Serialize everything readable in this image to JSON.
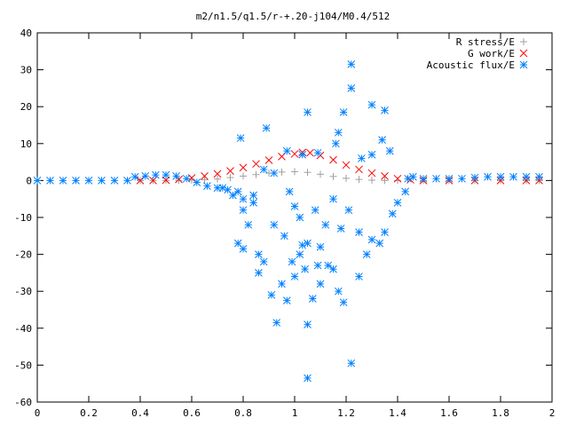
{
  "chart_data": {
    "type": "scatter",
    "title": "m2/n1.5/q1.5/r-+.20-j104/M0.4/512",
    "xlabel": "",
    "ylabel": "",
    "xlim": [
      0,
      2
    ],
    "ylim": [
      -60,
      40
    ],
    "xticks": [
      "0",
      "0.2",
      "0.4",
      "0.6",
      "0.8",
      "1",
      "1.2",
      "1.4",
      "1.6",
      "1.8",
      "2"
    ],
    "yticks": [
      "40",
      "30",
      "20",
      "10",
      "0",
      "-10",
      "-20",
      "-30",
      "-40",
      "-50",
      "-60"
    ],
    "grid": false,
    "legend_position": "top-right",
    "series": [
      {
        "name": "R stress/E",
        "marker": "plus",
        "color": "#a0a0a0",
        "points": [
          [
            0.4,
            0.0
          ],
          [
            0.45,
            0.0
          ],
          [
            0.5,
            0.0
          ],
          [
            0.55,
            0.0
          ],
          [
            0.6,
            0.1
          ],
          [
            0.65,
            0.2
          ],
          [
            0.7,
            0.4
          ],
          [
            0.75,
            0.8
          ],
          [
            0.8,
            1.2
          ],
          [
            0.85,
            1.6
          ],
          [
            0.9,
            2.0
          ],
          [
            0.95,
            2.3
          ],
          [
            1.0,
            2.4
          ],
          [
            1.05,
            2.2
          ],
          [
            1.1,
            1.7
          ],
          [
            1.15,
            1.1
          ],
          [
            1.2,
            0.6
          ],
          [
            1.25,
            0.3
          ],
          [
            1.3,
            0.1
          ],
          [
            1.35,
            0.0
          ],
          [
            1.4,
            0.0
          ],
          [
            1.5,
            0.0
          ],
          [
            1.6,
            0.0
          ],
          [
            1.7,
            0.0
          ],
          [
            1.8,
            0.0
          ],
          [
            1.9,
            0.0
          ],
          [
            1.95,
            0.0
          ]
        ]
      },
      {
        "name": "G work/E",
        "marker": "cross",
        "color": "#ff0000",
        "points": [
          [
            0.4,
            0.0
          ],
          [
            0.45,
            0.0
          ],
          [
            0.5,
            0.1
          ],
          [
            0.55,
            0.3
          ],
          [
            0.6,
            0.7
          ],
          [
            0.65,
            1.2
          ],
          [
            0.7,
            1.8
          ],
          [
            0.75,
            2.6
          ],
          [
            0.8,
            3.5
          ],
          [
            0.85,
            4.5
          ],
          [
            0.9,
            5.5
          ],
          [
            0.95,
            6.5
          ],
          [
            1.0,
            7.2
          ],
          [
            1.03,
            7.6
          ],
          [
            1.06,
            7.5
          ],
          [
            1.1,
            6.8
          ],
          [
            1.15,
            5.6
          ],
          [
            1.2,
            4.2
          ],
          [
            1.25,
            3.0
          ],
          [
            1.3,
            2.0
          ],
          [
            1.35,
            1.2
          ],
          [
            1.4,
            0.5
          ],
          [
            1.45,
            0.2
          ],
          [
            1.5,
            0.0
          ],
          [
            1.6,
            0.0
          ],
          [
            1.7,
            0.0
          ],
          [
            1.8,
            0.0
          ],
          [
            1.9,
            0.0
          ],
          [
            1.95,
            0.0
          ]
        ]
      },
      {
        "name": "Acoustic flux/E",
        "marker": "star",
        "color": "#0080ff",
        "points": [
          [
            0.0,
            0.0
          ],
          [
            0.05,
            0.0
          ],
          [
            0.1,
            0.0
          ],
          [
            0.15,
            0.0
          ],
          [
            0.2,
            0.0
          ],
          [
            0.25,
            0.0
          ],
          [
            0.3,
            0.0
          ],
          [
            0.35,
            0.0
          ],
          [
            0.38,
            1.0
          ],
          [
            0.42,
            1.2
          ],
          [
            0.46,
            1.5
          ],
          [
            0.5,
            1.5
          ],
          [
            0.54,
            1.2
          ],
          [
            0.58,
            0.5
          ],
          [
            0.62,
            -0.5
          ],
          [
            0.66,
            -1.5
          ],
          [
            0.7,
            -2.0
          ],
          [
            0.74,
            -2.5
          ],
          [
            0.78,
            -3.0
          ],
          [
            0.72,
            -2.0
          ],
          [
            0.76,
            -4.0
          ],
          [
            0.8,
            -5.0
          ],
          [
            0.84,
            -4.0
          ],
          [
            0.79,
            11.5
          ],
          [
            0.89,
            14.2
          ],
          [
            0.97,
            8.0
          ],
          [
            1.03,
            7.0
          ],
          [
            1.09,
            7.5
          ],
          [
            1.16,
            10.0
          ],
          [
            0.8,
            -8.0
          ],
          [
            0.82,
            -12.0
          ],
          [
            0.78,
            -17.0
          ],
          [
            0.8,
            -18.5
          ],
          [
            0.86,
            -20.0
          ],
          [
            0.86,
            -25.0
          ],
          [
            0.88,
            -22.0
          ],
          [
            0.91,
            -31.0
          ],
          [
            0.93,
            -38.5
          ],
          [
            0.95,
            -28.0
          ],
          [
            0.97,
            -32.5
          ],
          [
            1.0,
            -26.0
          ],
          [
            1.02,
            -20.0
          ],
          [
            1.03,
            -17.5
          ],
          [
            1.05,
            -17.0
          ],
          [
            1.04,
            -24.0
          ],
          [
            1.07,
            -32.0
          ],
          [
            1.09,
            -23.0
          ],
          [
            1.13,
            -23.0
          ],
          [
            1.15,
            -24.0
          ],
          [
            1.17,
            -30.0
          ],
          [
            1.19,
            -33.0
          ],
          [
            1.05,
            -39.0
          ],
          [
            1.05,
            -53.5
          ],
          [
            1.22,
            -49.5
          ],
          [
            1.05,
            18.5
          ],
          [
            1.17,
            13.0
          ],
          [
            1.19,
            18.5
          ],
          [
            1.22,
            25.0
          ],
          [
            1.22,
            31.5
          ],
          [
            1.3,
            20.5
          ],
          [
            1.35,
            19.0
          ],
          [
            1.34,
            11.0
          ],
          [
            1.37,
            8.0
          ],
          [
            1.3,
            7.0
          ],
          [
            1.26,
            6.0
          ],
          [
            0.88,
            3.0
          ],
          [
            0.92,
            2.0
          ],
          [
            0.98,
            -3.0
          ],
          [
            1.0,
            -7.0
          ],
          [
            1.02,
            -10.0
          ],
          [
            1.08,
            -8.0
          ],
          [
            1.12,
            -12.0
          ],
          [
            1.18,
            -13.0
          ],
          [
            1.25,
            -14.0
          ],
          [
            1.3,
            -16.0
          ],
          [
            1.35,
            -14.0
          ],
          [
            1.38,
            -9.0
          ],
          [
            1.4,
            -6.0
          ],
          [
            1.43,
            -3.0
          ],
          [
            1.44,
            0.5
          ],
          [
            1.46,
            1.0
          ],
          [
            1.5,
            0.5
          ],
          [
            1.55,
            0.5
          ],
          [
            1.6,
            0.5
          ],
          [
            1.65,
            0.5
          ],
          [
            1.7,
            0.8
          ],
          [
            1.75,
            1.0
          ],
          [
            1.8,
            1.0
          ],
          [
            1.85,
            1.0
          ],
          [
            1.9,
            1.0
          ],
          [
            1.95,
            1.0
          ],
          [
            0.92,
            -12.0
          ],
          [
            0.96,
            -15.0
          ],
          [
            1.1,
            -18.0
          ],
          [
            1.28,
            -20.0
          ],
          [
            1.33,
            -17.0
          ],
          [
            0.84,
            -6.0
          ],
          [
            1.15,
            -5.0
          ],
          [
            1.21,
            -8.0
          ],
          [
            1.1,
            -28.0
          ],
          [
            0.99,
            -22.0
          ],
          [
            1.25,
            -26.0
          ]
        ]
      }
    ]
  }
}
